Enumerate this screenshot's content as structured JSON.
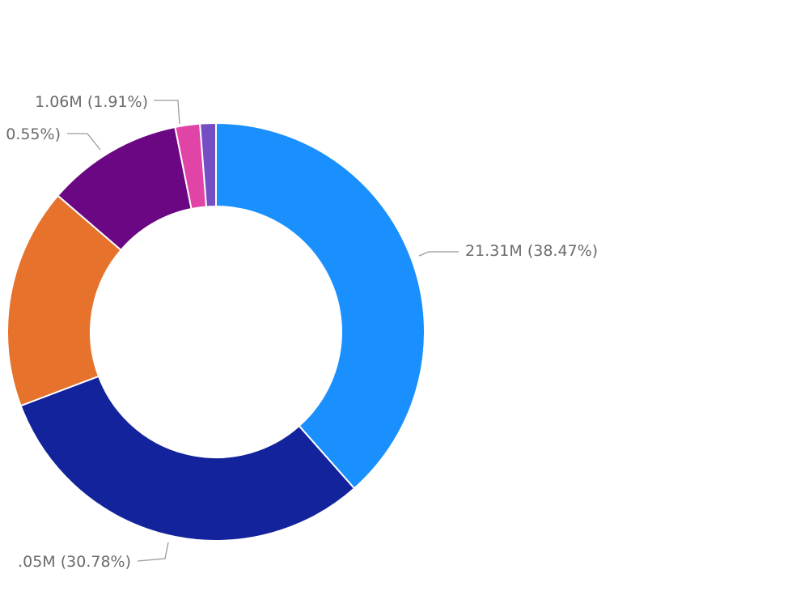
{
  "chart_data": {
    "type": "pie",
    "variant": "donut",
    "slices": [
      {
        "value": 21.31,
        "label": "21.31M (38.47%)",
        "percent": 38.47,
        "color": "#1a90ff"
      },
      {
        "value": 17.05,
        "label": ".05M (30.78%)",
        "percent": 30.78,
        "color": "#13239b"
      },
      {
        "value": 9.45,
        "label": "",
        "percent": 17.06,
        "color": "#e6722c"
      },
      {
        "value": 5.84,
        "label": "0.55%)",
        "percent": 10.55,
        "color": "#6b0782"
      },
      {
        "value": 1.06,
        "label": "1.06M (1.91%)",
        "percent": 1.91,
        "color": "#e044a7"
      },
      {
        "value": 0.68,
        "label": "",
        "percent": 1.23,
        "color": "#744ec2"
      }
    ]
  }
}
